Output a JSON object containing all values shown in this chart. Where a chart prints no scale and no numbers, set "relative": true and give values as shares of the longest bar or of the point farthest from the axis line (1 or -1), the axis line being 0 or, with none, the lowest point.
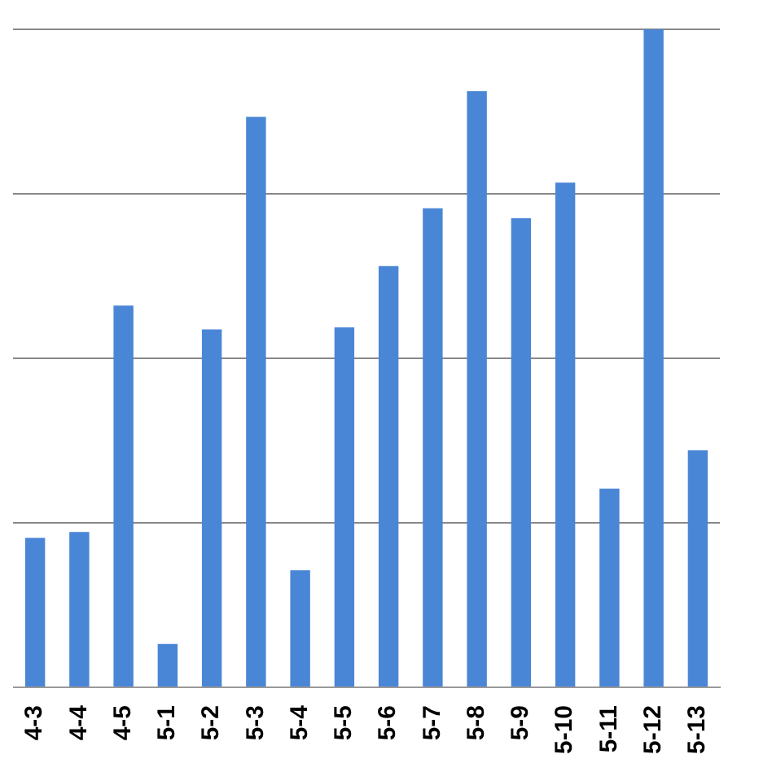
{
  "chart_data": {
    "type": "bar",
    "relative": true,
    "grid": "y",
    "legend": false,
    "categories": [
      "4-3",
      "4-4",
      "4-5",
      "5-1",
      "5-2",
      "5-3",
      "5-4",
      "5-5",
      "5-6",
      "5-7",
      "5-8",
      "5-9",
      "5-10",
      "5-11",
      "5-12",
      "5-13"
    ],
    "values": [
      0.227,
      0.236,
      0.58,
      0.066,
      0.544,
      0.867,
      0.178,
      0.547,
      0.64,
      0.728,
      0.906,
      0.713,
      0.767,
      0.302,
      1,
      0.36
    ],
    "color": "#4a86d6"
  }
}
